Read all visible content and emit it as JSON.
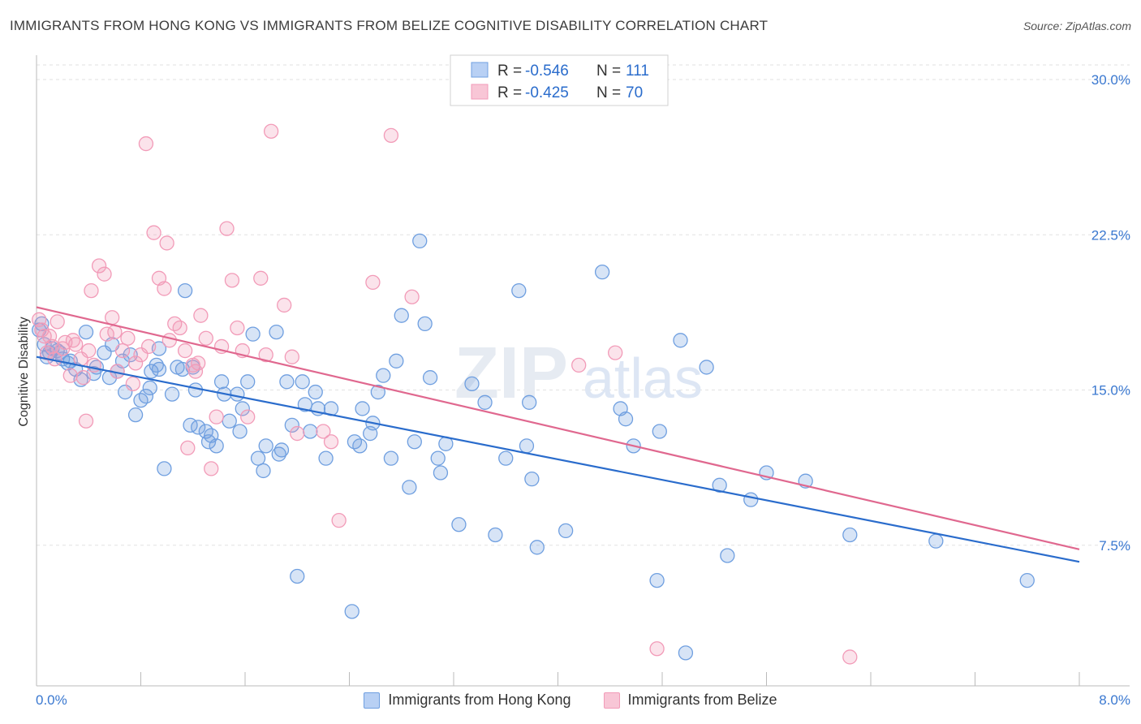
{
  "title": "IMMIGRANTS FROM HONG KONG VS IMMIGRANTS FROM BELIZE COGNITIVE DISABILITY CORRELATION CHART",
  "source": "Source: ZipAtlas.com",
  "watermark": {
    "zip": "ZIP",
    "atlas": "atlas"
  },
  "chart_data": {
    "type": "scatter",
    "ylabel": "Cognitive Disability",
    "xlim": [
      0,
      8.0
    ],
    "ylim": [
      0,
      30.0
    ],
    "x_tick_labels": [
      "0.0%",
      "8.0%"
    ],
    "y_ticks": [
      7.5,
      15.0,
      22.5,
      30.0
    ],
    "y_tick_labels": [
      "7.5%",
      "15.0%",
      "22.5%",
      "30.0%"
    ],
    "grid": true,
    "legend_placement": "top-center",
    "legend_entries": [
      {
        "r_label": "R =",
        "r_value": "-0.546",
        "n_label": "N =",
        "n_value": "111"
      },
      {
        "r_label": "R =",
        "r_value": "-0.425",
        "n_label": "N =",
        "n_value": "70"
      }
    ],
    "series": [
      {
        "name": "Immigrants from Hong Kong",
        "color": "#6f9fe0",
        "line_color": "#2a6ccc",
        "trend": {
          "x": [
            0.0,
            8.0
          ],
          "y": [
            16.6,
            6.7
          ]
        },
        "points": [
          [
            0.02,
            17.9
          ],
          [
            0.04,
            18.2
          ],
          [
            0.06,
            17.2
          ],
          [
            0.1,
            16.8
          ],
          [
            0.12,
            17.0
          ],
          [
            0.16,
            16.9
          ],
          [
            0.2,
            16.5
          ],
          [
            0.26,
            16.4
          ],
          [
            0.3,
            16.0
          ],
          [
            0.38,
            17.8
          ],
          [
            0.44,
            15.8
          ],
          [
            0.52,
            16.8
          ],
          [
            0.56,
            15.6
          ],
          [
            0.62,
            15.9
          ],
          [
            0.66,
            16.4
          ],
          [
            0.72,
            16.7
          ],
          [
            0.76,
            13.8
          ],
          [
            0.8,
            14.5
          ],
          [
            0.84,
            14.7
          ],
          [
            0.87,
            15.1
          ],
          [
            0.88,
            15.9
          ],
          [
            0.94,
            17.0
          ],
          [
            0.94,
            16.0
          ],
          [
            0.98,
            11.2
          ],
          [
            1.04,
            14.8
          ],
          [
            1.12,
            16.0
          ],
          [
            1.14,
            19.8
          ],
          [
            1.18,
            13.3
          ],
          [
            1.22,
            15.0
          ],
          [
            1.24,
            13.2
          ],
          [
            1.3,
            13.0
          ],
          [
            1.32,
            12.5
          ],
          [
            1.38,
            12.3
          ],
          [
            1.42,
            15.4
          ],
          [
            1.44,
            14.8
          ],
          [
            1.48,
            13.5
          ],
          [
            1.54,
            14.8
          ],
          [
            1.56,
            13.0
          ],
          [
            1.58,
            14.1
          ],
          [
            1.62,
            15.4
          ],
          [
            1.66,
            17.7
          ],
          [
            1.7,
            11.7
          ],
          [
            1.74,
            11.1
          ],
          [
            1.76,
            12.3
          ],
          [
            1.84,
            17.8
          ],
          [
            1.86,
            11.9
          ],
          [
            1.88,
            12.1
          ],
          [
            1.92,
            15.4
          ],
          [
            1.96,
            13.3
          ],
          [
            2.0,
            6.0
          ],
          [
            2.04,
            15.4
          ],
          [
            2.06,
            14.3
          ],
          [
            2.1,
            13.0
          ],
          [
            2.14,
            14.9
          ],
          [
            2.16,
            14.1
          ],
          [
            2.22,
            11.7
          ],
          [
            2.26,
            14.1
          ],
          [
            2.42,
            4.3
          ],
          [
            2.44,
            12.5
          ],
          [
            2.48,
            12.3
          ],
          [
            2.5,
            14.1
          ],
          [
            2.56,
            12.9
          ],
          [
            2.58,
            13.4
          ],
          [
            2.62,
            14.9
          ],
          [
            2.66,
            15.7
          ],
          [
            2.72,
            11.7
          ],
          [
            2.76,
            16.4
          ],
          [
            2.8,
            18.6
          ],
          [
            2.86,
            10.3
          ],
          [
            2.9,
            12.5
          ],
          [
            2.94,
            22.2
          ],
          [
            2.98,
            18.2
          ],
          [
            3.02,
            15.6
          ],
          [
            3.08,
            11.7
          ],
          [
            3.1,
            11.0
          ],
          [
            3.14,
            12.4
          ],
          [
            3.24,
            8.5
          ],
          [
            3.34,
            15.3
          ],
          [
            3.44,
            14.4
          ],
          [
            3.52,
            8.0
          ],
          [
            3.6,
            11.7
          ],
          [
            3.7,
            19.8
          ],
          [
            3.76,
            12.3
          ],
          [
            3.78,
            14.4
          ],
          [
            3.8,
            10.7
          ],
          [
            3.84,
            7.4
          ],
          [
            4.06,
            8.2
          ],
          [
            4.34,
            20.7
          ],
          [
            4.48,
            14.1
          ],
          [
            4.52,
            13.6
          ],
          [
            4.58,
            12.3
          ],
          [
            4.76,
            5.8
          ],
          [
            4.78,
            13.0
          ],
          [
            4.94,
            17.4
          ],
          [
            4.98,
            2.3
          ],
          [
            5.14,
            16.1
          ],
          [
            5.24,
            10.4
          ],
          [
            5.3,
            7.0
          ],
          [
            5.48,
            9.7
          ],
          [
            5.6,
            11.0
          ],
          [
            5.9,
            10.6
          ],
          [
            6.24,
            8.0
          ],
          [
            6.9,
            7.7
          ],
          [
            7.6,
            5.8
          ],
          [
            0.08,
            16.6
          ],
          [
            0.18,
            16.8
          ],
          [
            0.24,
            16.3
          ],
          [
            0.34,
            15.5
          ],
          [
            0.46,
            16.1
          ],
          [
            0.58,
            17.2
          ],
          [
            0.68,
            14.9
          ],
          [
            0.92,
            16.2
          ],
          [
            1.08,
            16.1
          ],
          [
            1.2,
            16.1
          ],
          [
            1.34,
            12.8
          ]
        ]
      },
      {
        "name": "Immigrants from Belize",
        "color": "#f29bb8",
        "line_color": "#e0688f",
        "trend": {
          "x": [
            0.0,
            8.0
          ],
          "y": [
            19.0,
            7.3
          ]
        },
        "points": [
          [
            0.02,
            18.4
          ],
          [
            0.04,
            17.9
          ],
          [
            0.06,
            17.6
          ],
          [
            0.08,
            16.8
          ],
          [
            0.12,
            17.1
          ],
          [
            0.16,
            18.3
          ],
          [
            0.2,
            17.0
          ],
          [
            0.22,
            17.3
          ],
          [
            0.26,
            15.7
          ],
          [
            0.3,
            17.2
          ],
          [
            0.34,
            16.5
          ],
          [
            0.38,
            13.5
          ],
          [
            0.42,
            19.8
          ],
          [
            0.44,
            16.2
          ],
          [
            0.48,
            21.0
          ],
          [
            0.52,
            20.6
          ],
          [
            0.58,
            18.5
          ],
          [
            0.6,
            17.8
          ],
          [
            0.62,
            15.9
          ],
          [
            0.66,
            16.9
          ],
          [
            0.7,
            17.5
          ],
          [
            0.74,
            15.3
          ],
          [
            0.8,
            16.7
          ],
          [
            0.84,
            26.9
          ],
          [
            0.86,
            17.1
          ],
          [
            0.9,
            22.6
          ],
          [
            0.94,
            20.4
          ],
          [
            0.98,
            19.9
          ],
          [
            1.0,
            22.1
          ],
          [
            1.02,
            17.4
          ],
          [
            1.06,
            18.2
          ],
          [
            1.1,
            18.0
          ],
          [
            1.14,
            16.9
          ],
          [
            1.16,
            12.2
          ],
          [
            1.2,
            16.2
          ],
          [
            1.22,
            15.9
          ],
          [
            1.26,
            18.6
          ],
          [
            1.3,
            17.5
          ],
          [
            1.34,
            11.2
          ],
          [
            1.38,
            13.7
          ],
          [
            1.42,
            17.1
          ],
          [
            1.46,
            22.8
          ],
          [
            1.5,
            20.3
          ],
          [
            1.54,
            18.0
          ],
          [
            1.58,
            16.9
          ],
          [
            1.62,
            13.7
          ],
          [
            1.72,
            20.4
          ],
          [
            1.76,
            16.7
          ],
          [
            1.8,
            27.5
          ],
          [
            1.9,
            19.1
          ],
          [
            1.96,
            16.6
          ],
          [
            2.0,
            12.9
          ],
          [
            2.2,
            13.0
          ],
          [
            2.26,
            12.5
          ],
          [
            2.32,
            8.7
          ],
          [
            2.58,
            20.2
          ],
          [
            2.72,
            27.3
          ],
          [
            2.88,
            19.5
          ],
          [
            4.16,
            16.2
          ],
          [
            4.44,
            16.8
          ],
          [
            4.76,
            2.5
          ],
          [
            6.24,
            2.1
          ],
          [
            0.1,
            17.6
          ],
          [
            0.14,
            16.5
          ],
          [
            0.28,
            17.4
          ],
          [
            0.36,
            15.6
          ],
          [
            0.4,
            16.9
          ],
          [
            0.54,
            17.7
          ],
          [
            0.76,
            16.3
          ],
          [
            1.24,
            16.3
          ]
        ]
      }
    ]
  }
}
